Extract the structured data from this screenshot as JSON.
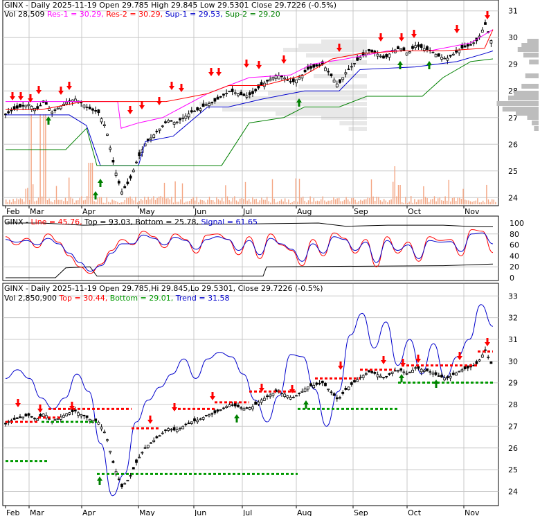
{
  "colors": {
    "background": "#ffffff",
    "frame": "#000000",
    "grid": "#c8c8c8",
    "price_line": "#000000",
    "resistance_1": "#ff00ff",
    "resistance_2": "#ff0000",
    "support_1": "#0000cc",
    "support_2": "#008000",
    "volume": "#f4a582",
    "volume_profile": "#bdbdbd",
    "arrow_up": "#008000",
    "arrow_down": "#ff0000",
    "trend": "#0000cc",
    "top_dash": "#ff0000",
    "bottom_dash": "#009900",
    "stoch_line": "#ff0000",
    "stoch_signal": "#0000cc",
    "stoch_band": "#000000"
  },
  "panel1": {
    "ticker": "GINX",
    "dash": " - ",
    "info": "Daily 2025-11-19 Open 29.785   High 29.845   Low 29.5301   Close 29.7226 (-0.5%)",
    "vol": "Vol 28,509",
    "res1": "Res-1 = 30.29,",
    "res2": "Res-2 = 30.29,",
    "sup1": "Sup-1 = 29.53,",
    "sup2": "Sup-2 = 29.20"
  },
  "panel2": {
    "ticker": "GINX",
    "dash": " - ",
    "line": "Line = 45.76,",
    "top": "Top = 93.03,",
    "bottom": "Bottom = 25.78,",
    "signal": "Signal = 61.65"
  },
  "panel3": {
    "line1": "GINX - Daily 2025-11-19 Open 29.785,Hi 29.845,Lo 29.5301,  Close 29.7226 (-0.5%)",
    "vol": "Vol 2,850,900",
    "top": "Top = 30.44,",
    "bottom": "Bottom = 29.01,",
    "trend": "Trend = 31.58"
  },
  "chart_data": [
    {
      "type": "line",
      "panel": "price",
      "x_labels": [
        "Feb",
        "Mar",
        "Apr",
        "May",
        "Jun",
        "Jul",
        "Aug",
        "Sep",
        "Oct",
        "Nov"
      ],
      "y_ticks": [
        24,
        25,
        26,
        27,
        28,
        29,
        30,
        31
      ],
      "ylim": [
        23.8,
        31.2
      ],
      "grid": true,
      "series": [
        {
          "values": [
            27.1,
            27.3,
            27.4,
            27.5,
            27.3,
            27.6,
            27.2,
            27.4,
            27.6,
            27.7,
            27.5,
            27.3,
            27.2,
            26.6,
            25.2,
            24.2,
            24.6,
            25.4,
            26.0,
            26.3,
            26.6,
            26.9,
            26.8,
            27.0,
            27.2,
            27.3,
            27.5,
            27.6,
            27.8,
            28.0,
            27.9,
            27.8,
            27.9,
            28.2,
            28.4,
            28.6,
            28.5,
            28.3,
            28.5,
            28.8,
            28.9,
            29.0,
            28.6,
            28.2,
            28.7,
            29.0,
            29.3,
            29.5,
            29.4,
            29.2,
            29.5,
            29.6,
            29.4,
            29.7,
            29.6,
            29.5,
            29.3,
            29.2,
            29.4,
            29.6,
            29.7,
            29.9,
            30.5,
            29.7
          ]
        }
      ]
    },
    {
      "type": "line",
      "panel": "stochastic",
      "y_ticks": [
        0,
        20,
        40,
        60,
        80,
        100
      ],
      "ylim": [
        0,
        100
      ],
      "series": [
        {
          "name": "Line",
          "values": [
            75,
            60,
            72,
            55,
            80,
            65,
            40,
            20,
            8,
            25,
            50,
            70,
            60,
            85,
            75,
            55,
            80,
            70,
            45,
            78,
            80,
            70,
            42,
            75,
            35,
            80,
            60,
            50,
            22,
            70,
            40,
            82,
            72,
            45,
            70,
            20,
            75,
            45,
            65,
            30,
            75,
            68,
            70,
            40,
            88,
            85,
            46
          ]
        },
        {
          "name": "Signal",
          "values": [
            70,
            65,
            68,
            60,
            72,
            62,
            45,
            28,
            12,
            22,
            45,
            62,
            62,
            78,
            72,
            60,
            74,
            68,
            52,
            70,
            75,
            70,
            50,
            68,
            42,
            72,
            62,
            52,
            30,
            62,
            45,
            75,
            70,
            50,
            65,
            28,
            68,
            50,
            60,
            35,
            68,
            65,
            66,
            48,
            80,
            82,
            62
          ]
        }
      ]
    },
    {
      "type": "line",
      "panel": "trend",
      "y_ticks": [
        24,
        25,
        26,
        27,
        28,
        29,
        30,
        31,
        32,
        33
      ],
      "ylim": [
        23.6,
        33.2
      ],
      "series": [
        {
          "name": "Trend",
          "values": [
            29.2,
            29.6,
            29.2,
            28.3,
            27.8,
            28.3,
            29.4,
            28.6,
            26.2,
            23.8,
            24.8,
            27.2,
            28.2,
            28.8,
            29.4,
            30.1,
            29.2,
            30.1,
            30.4,
            30.2,
            29.4,
            28.2,
            27.2,
            28.4,
            30.3,
            30.2,
            28.7,
            27.0,
            28.6,
            31.2,
            32.2,
            30.6,
            31.8,
            29.8,
            31.0,
            29.4,
            30.8,
            29.2,
            30.2,
            31.0,
            32.6,
            31.6
          ]
        }
      ]
    }
  ]
}
